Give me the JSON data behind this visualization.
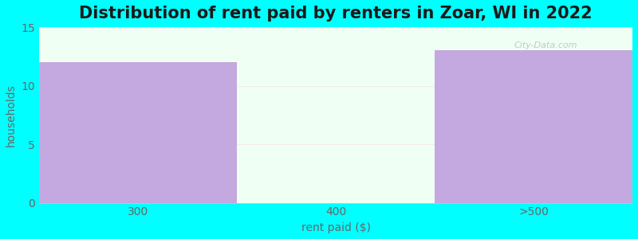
{
  "title": "Distribution of rent paid by renters in Zoar, WI in 2022",
  "categories": [
    "300",
    "400",
    ">500"
  ],
  "values": [
    12,
    0,
    13
  ],
  "bar_color_purple": "#c4a8e0",
  "bar_color_mint": "#eaf5ea",
  "xlabel": "rent paid ($)",
  "ylabel": "households",
  "ylim": [
    0,
    15
  ],
  "yticks": [
    0,
    5,
    10,
    15
  ],
  "fig_bg_color": "#00ffff",
  "plot_bg_color": "#f0fff4",
  "title_fontsize": 15,
  "label_fontsize": 10,
  "tick_fontsize": 10,
  "title_color": "#1a1a1a",
  "axis_label_color": "#666666",
  "tick_color": "#666666",
  "bar_edges": [
    0,
    1,
    2,
    3
  ],
  "watermark": "City-Data.com"
}
